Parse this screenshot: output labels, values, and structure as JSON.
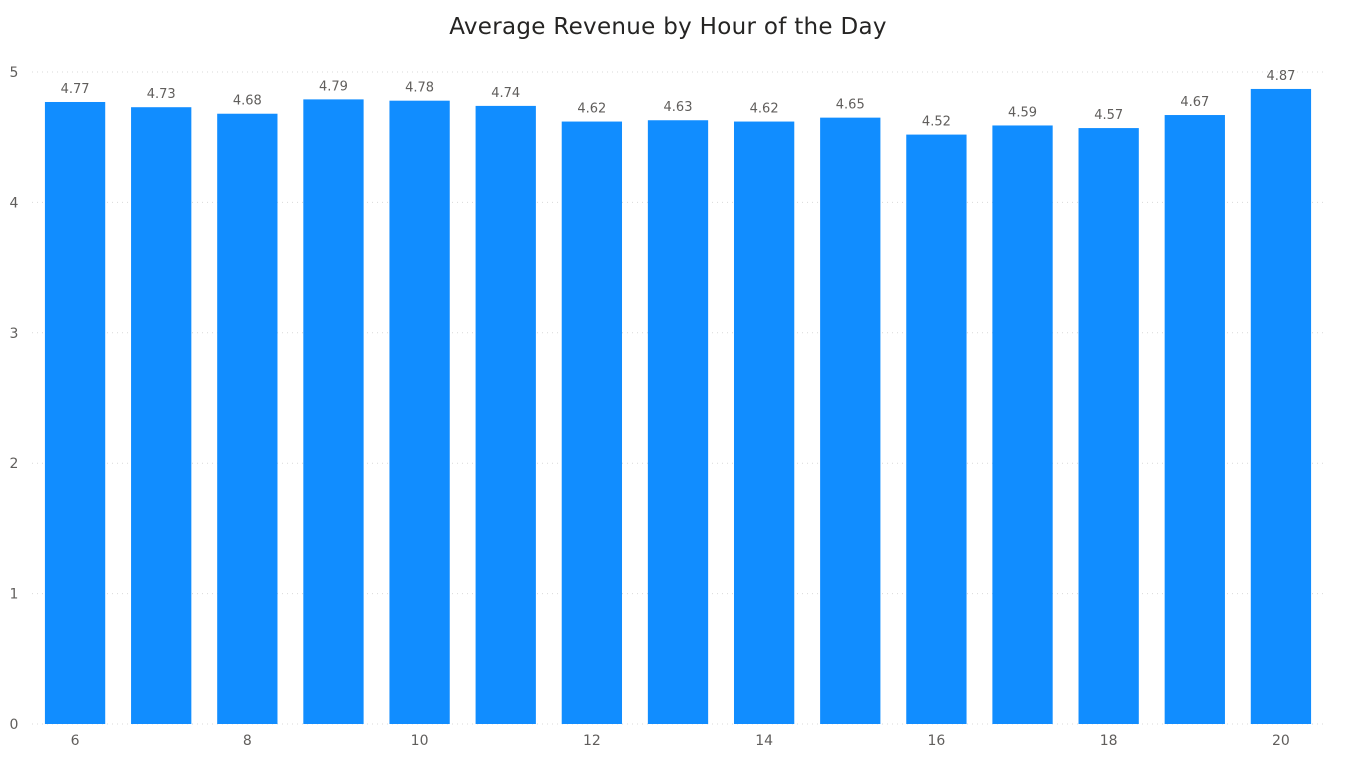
{
  "chart_data": {
    "type": "bar",
    "title": "Average Revenue by Hour of the Day",
    "xlabel": "",
    "ylabel": "",
    "x": [
      6,
      7,
      8,
      9,
      10,
      11,
      12,
      13,
      14,
      15,
      16,
      17,
      18,
      19,
      20
    ],
    "x_tick_labels": [
      "6",
      "8",
      "10",
      "12",
      "14",
      "16",
      "18",
      "20"
    ],
    "values": [
      4.77,
      4.73,
      4.68,
      4.79,
      4.78,
      4.74,
      4.62,
      4.63,
      4.62,
      4.65,
      4.52,
      4.59,
      4.57,
      4.67,
      4.87
    ],
    "data_labels": [
      "4.77",
      "4.73",
      "4.68",
      "4.79",
      "4.78",
      "4.74",
      "4.62",
      "4.63",
      "4.62",
      "4.65",
      "4.52",
      "4.59",
      "4.57",
      "4.67",
      "4.87"
    ],
    "y_ticks": [
      0,
      1,
      2,
      3,
      4,
      5
    ],
    "ylim": [
      0,
      5
    ],
    "grid": true,
    "legend": "none",
    "bar_color": "#118DFF"
  }
}
